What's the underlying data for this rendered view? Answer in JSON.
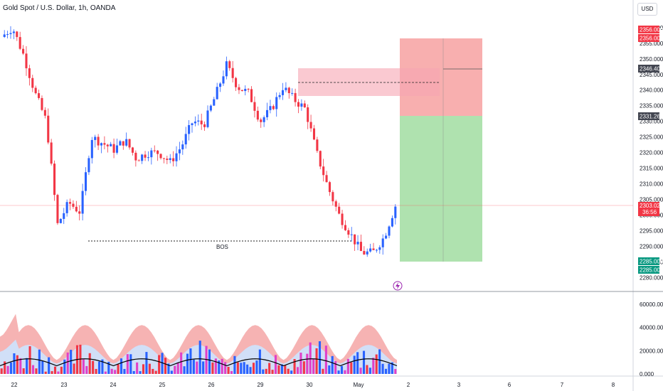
{
  "header": {
    "title": "Gold Spot / U.S. Dollar, 1h, OANDA",
    "currency": "USD"
  },
  "colors": {
    "up": "#2962ff",
    "down": "#f23645",
    "stop_zone": "#f7a1a1",
    "target_zone": "#a6dfa6",
    "supply_zone": "#f9b8c1",
    "price_line": "#f7525f",
    "vol_band_outer": "#f4a6a6",
    "vol_band_inner": "#cfe2fb",
    "vol_magenta": "#e040c8"
  },
  "chart_data": [
    {
      "type": "candlestick",
      "title": "Gold Spot / U.S. Dollar, 1h, OANDA",
      "y_axis": {
        "ticks": [
          "2360.000",
          "2355.000",
          "2350.000",
          "2345.000",
          "2340.000",
          "2335.000",
          "2330.000",
          "2325.000",
          "2320.000",
          "2315.000",
          "2310.000",
          "2305.000",
          "2300.000",
          "2295.000",
          "2290.000",
          "2285.000",
          "2280.000"
        ],
        "ylim": [
          2279,
          2362
        ]
      },
      "x_axis": {
        "ticks": [
          "22",
          "23",
          "24",
          "25",
          "26",
          "29",
          "30",
          "May",
          "2",
          "3",
          "6",
          "7",
          "8"
        ]
      },
      "price_path": [
        {
          "x": "22",
          "y": 2357
        },
        {
          "x": "22.4",
          "y": 2360
        },
        {
          "x": "22.7",
          "y": 2351
        },
        {
          "x": "22.9",
          "y": 2339
        },
        {
          "x": "23",
          "y": 2330
        },
        {
          "x": "23.15",
          "y": 2297
        },
        {
          "x": "23.3",
          "y": 2304
        },
        {
          "x": "23.5",
          "y": 2301
        },
        {
          "x": "23.6",
          "y": 2325
        },
        {
          "x": "23.8",
          "y": 2323
        },
        {
          "x": "24",
          "y": 2321
        },
        {
          "x": "24.3",
          "y": 2324
        },
        {
          "x": "24.6",
          "y": 2318
        },
        {
          "x": "24.9",
          "y": 2320
        },
        {
          "x": "25",
          "y": 2320
        },
        {
          "x": "25.3",
          "y": 2317
        },
        {
          "x": "25.7",
          "y": 2322
        },
        {
          "x": "25.9",
          "y": 2330
        },
        {
          "x": "26",
          "y": 2329
        },
        {
          "x": "26.4",
          "y": 2338
        },
        {
          "x": "26.7",
          "y": 2348
        },
        {
          "x": "27",
          "y": 2341
        },
        {
          "x": "29",
          "y": 2339
        },
        {
          "x": "29.2",
          "y": 2330
        },
        {
          "x": "29.5",
          "y": 2334
        },
        {
          "x": "29.8",
          "y": 2341
        },
        {
          "x": "30",
          "y": 2337
        },
        {
          "x": "30.3",
          "y": 2334
        },
        {
          "x": "30.6",
          "y": 2320
        },
        {
          "x": "30.8",
          "y": 2309
        },
        {
          "x": "30.9",
          "y": 2300
        },
        {
          "x": "May.1",
          "y": 2294
        },
        {
          "x": "May.2",
          "y": 2288
        },
        {
          "x": "May.3",
          "y": 2288
        },
        {
          "x": "May.5",
          "y": 2293
        },
        {
          "x": "May.7",
          "y": 2303
        }
      ],
      "last_price": "2303.025",
      "countdown": "36:56",
      "annotations": {
        "bos_label": "BOS",
        "bos_level": 2293.6,
        "supply_zone": {
          "from": 2337.3,
          "to": 2345.8,
          "mid": 2341.6
        },
        "short_position": {
          "entry": "2331.262",
          "stop": "2356.000",
          "stop_dup": "2356.000",
          "target": "2285.000",
          "target_dup": "2285.000",
          "marker": "2346.400"
        }
      }
    },
    {
      "type": "bar",
      "title": "",
      "y_axis": {
        "ticks": [
          "60000.000",
          "40000.000",
          "20000.000",
          "0.000"
        ],
        "ylim": [
          0,
          66000
        ]
      },
      "series": [],
      "bands": "red/pink outer envelope and light-blue inner envelope with black moving average line"
    }
  ]
}
